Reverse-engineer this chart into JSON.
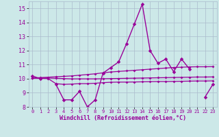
{
  "hours": [
    0,
    1,
    2,
    3,
    4,
    5,
    6,
    7,
    8,
    9,
    10,
    11,
    12,
    13,
    14,
    15,
    16,
    17,
    18,
    19,
    20,
    21,
    22,
    23
  ],
  "line_main": [
    10.2,
    10.0,
    null,
    9.6,
    8.5,
    8.5,
    9.1,
    8.0,
    8.5,
    10.4,
    10.8,
    11.2,
    12.5,
    13.9,
    15.3,
    12.0,
    11.1,
    11.4,
    10.5,
    11.4,
    10.7,
    null,
    8.7,
    9.6
  ],
  "line_trend1": [
    10.05,
    10.08,
    10.11,
    10.14,
    10.17,
    10.2,
    10.25,
    10.3,
    10.35,
    10.42,
    10.48,
    10.52,
    10.56,
    10.6,
    10.64,
    10.68,
    10.72,
    10.76,
    10.8,
    10.82,
    10.84,
    10.85,
    10.85,
    10.86
  ],
  "line_trend2": [
    10.05,
    10.05,
    10.05,
    10.03,
    10.01,
    9.99,
    9.99,
    9.99,
    9.99,
    10.0,
    10.01,
    10.02,
    10.03,
    10.04,
    10.05,
    10.06,
    10.07,
    10.08,
    10.09,
    10.1,
    10.11,
    10.12,
    10.12,
    10.13
  ],
  "line_trend3": [
    10.05,
    10.03,
    10.01,
    9.65,
    9.6,
    9.62,
    9.65,
    9.65,
    9.68,
    9.72,
    9.75,
    9.76,
    9.76,
    9.77,
    9.78,
    9.79,
    9.8,
    9.8,
    9.81,
    9.82,
    9.83,
    9.84,
    9.84,
    9.85
  ],
  "color": "#990099",
  "bg_color": "#cce8e8",
  "grid_color": "#aabbcc",
  "xlabel": "Windchill (Refroidissement éolien,°C)",
  "xlim": [
    -0.5,
    23.5
  ],
  "ylim": [
    8,
    15.5
  ],
  "yticks": [
    8,
    9,
    10,
    11,
    12,
    13,
    14,
    15
  ],
  "xticks": [
    0,
    1,
    2,
    3,
    4,
    5,
    6,
    7,
    8,
    9,
    10,
    11,
    12,
    13,
    14,
    15,
    16,
    17,
    18,
    19,
    20,
    21,
    22,
    23
  ]
}
